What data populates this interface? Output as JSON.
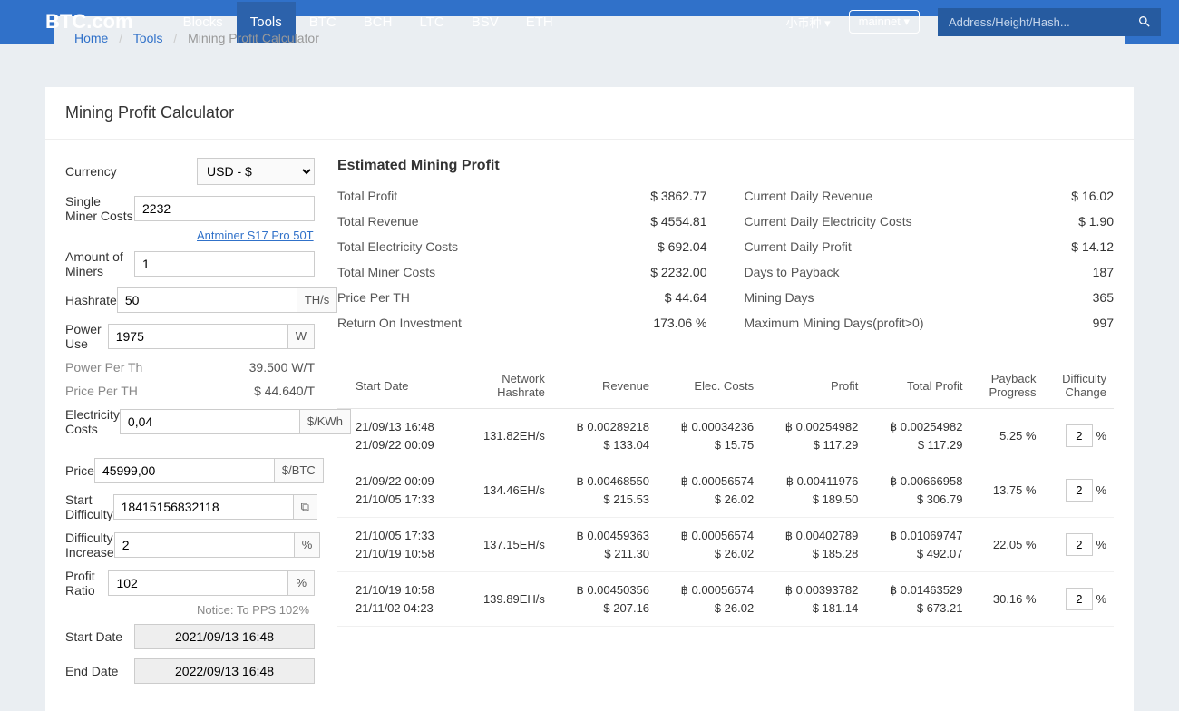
{
  "header": {
    "logo": "BTC.com",
    "nav": [
      "Blocks",
      "Tools",
      "BTC",
      "BCH",
      "LTC",
      "BSV",
      "ETH"
    ],
    "active_nav": "Tools",
    "small_link": "小币种",
    "network": "mainnet",
    "search_placeholder": "Address/Height/Hash..."
  },
  "breadcrumb": {
    "home": "Home",
    "tools": "Tools",
    "current": "Mining Profit Calculator"
  },
  "page_title": "Mining Profit Calculator",
  "form": {
    "currency_label": "Currency",
    "currency_value": "USD - $",
    "single_miner_label": "Single Miner Costs",
    "single_miner_value": "2232",
    "miner_model": "Antminer S17 Pro 50T",
    "amount_label": "Amount of Miners",
    "amount_value": "1",
    "hashrate_label": "Hashrate",
    "hashrate_value": "50",
    "hashrate_unit": "TH/s",
    "power_label": "Power Use",
    "power_value": "1975",
    "power_unit": "W",
    "power_per_th_label": "Power Per Th",
    "power_per_th_value": "39.500 W/T",
    "price_per_th_label": "Price Per TH",
    "price_per_th_value": "$ 44.640/T",
    "elec_label": "Electricity Costs",
    "elec_value": "0,04",
    "elec_unit": "$/KWh",
    "price_label": "Price",
    "price_value": "45999,00",
    "price_unit": "$/BTC",
    "start_diff_label": "Start Difficulty",
    "start_diff_value": "18415156832118",
    "diff_inc_label": "Difficulty Increase",
    "diff_inc_value": "2",
    "pct_unit": "%",
    "profit_ratio_label": "Profit Ratio",
    "profit_ratio_value": "102",
    "notice": "Notice: To PPS 102%",
    "start_date_label": "Start Date",
    "start_date_value": "2021/09/13 16:48",
    "end_date_label": "End Date",
    "end_date_value": "2022/09/13 16:48"
  },
  "est_title": "Estimated Mining Profit",
  "summary_left": [
    {
      "label": "Total Profit",
      "value": "$ 3862.77"
    },
    {
      "label": "Total Revenue",
      "value": "$ 4554.81"
    },
    {
      "label": "Total Electricity Costs",
      "value": "$ 692.04"
    },
    {
      "label": "Total Miner Costs",
      "value": "$ 2232.00"
    },
    {
      "label": "Price Per TH",
      "value": "$ 44.64"
    },
    {
      "label": "Return On Investment",
      "value": "173.06 %"
    }
  ],
  "summary_right": [
    {
      "label": "Current Daily Revenue",
      "value": "$ 16.02"
    },
    {
      "label": "Current Daily Electricity Costs",
      "value": "$ 1.90"
    },
    {
      "label": "Current Daily Profit",
      "value": "$ 14.12"
    },
    {
      "label": "Days to Payback",
      "value": "187"
    },
    {
      "label": "Mining Days",
      "value": "365"
    },
    {
      "label": "Maximum Mining Days(profit>0)",
      "value": "997"
    }
  ],
  "table": {
    "headers": [
      "Start Date",
      "Network Hashrate",
      "Revenue",
      "Elec. Costs",
      "Profit",
      "Total Profit",
      "Payback Progress",
      "Difficulty Change"
    ],
    "rows": [
      {
        "dates": [
          "21/09/13 16:48",
          "21/09/22 00:09"
        ],
        "hash": "131.82EH/s",
        "rev": [
          "฿ 0.00289218",
          "$ 133.04"
        ],
        "elec": [
          "฿ 0.00034236",
          "$ 15.75"
        ],
        "prof": [
          "฿ 0.00254982",
          "$ 117.29"
        ],
        "tot": [
          "฿ 0.00254982",
          "$ 117.29"
        ],
        "pay": "5.25 %",
        "diff": "2"
      },
      {
        "dates": [
          "21/09/22 00:09",
          "21/10/05 17:33"
        ],
        "hash": "134.46EH/s",
        "rev": [
          "฿ 0.00468550",
          "$ 215.53"
        ],
        "elec": [
          "฿ 0.00056574",
          "$ 26.02"
        ],
        "prof": [
          "฿ 0.00411976",
          "$ 189.50"
        ],
        "tot": [
          "฿ 0.00666958",
          "$ 306.79"
        ],
        "pay": "13.75 %",
        "diff": "2"
      },
      {
        "dates": [
          "21/10/05 17:33",
          "21/10/19 10:58"
        ],
        "hash": "137.15EH/s",
        "rev": [
          "฿ 0.00459363",
          "$ 211.30"
        ],
        "elec": [
          "฿ 0.00056574",
          "$ 26.02"
        ],
        "prof": [
          "฿ 0.00402789",
          "$ 185.28"
        ],
        "tot": [
          "฿ 0.01069747",
          "$ 492.07"
        ],
        "pay": "22.05 %",
        "diff": "2"
      },
      {
        "dates": [
          "21/10/19 10:58",
          "21/11/02 04:23"
        ],
        "hash": "139.89EH/s",
        "rev": [
          "฿ 0.00450356",
          "$ 207.16"
        ],
        "elec": [
          "฿ 0.00056574",
          "$ 26.02"
        ],
        "prof": [
          "฿ 0.00393782",
          "$ 181.14"
        ],
        "tot": [
          "฿ 0.01463529",
          "$ 673.21"
        ],
        "pay": "30.16 %",
        "diff": "2"
      }
    ],
    "pct_unit": "%"
  }
}
